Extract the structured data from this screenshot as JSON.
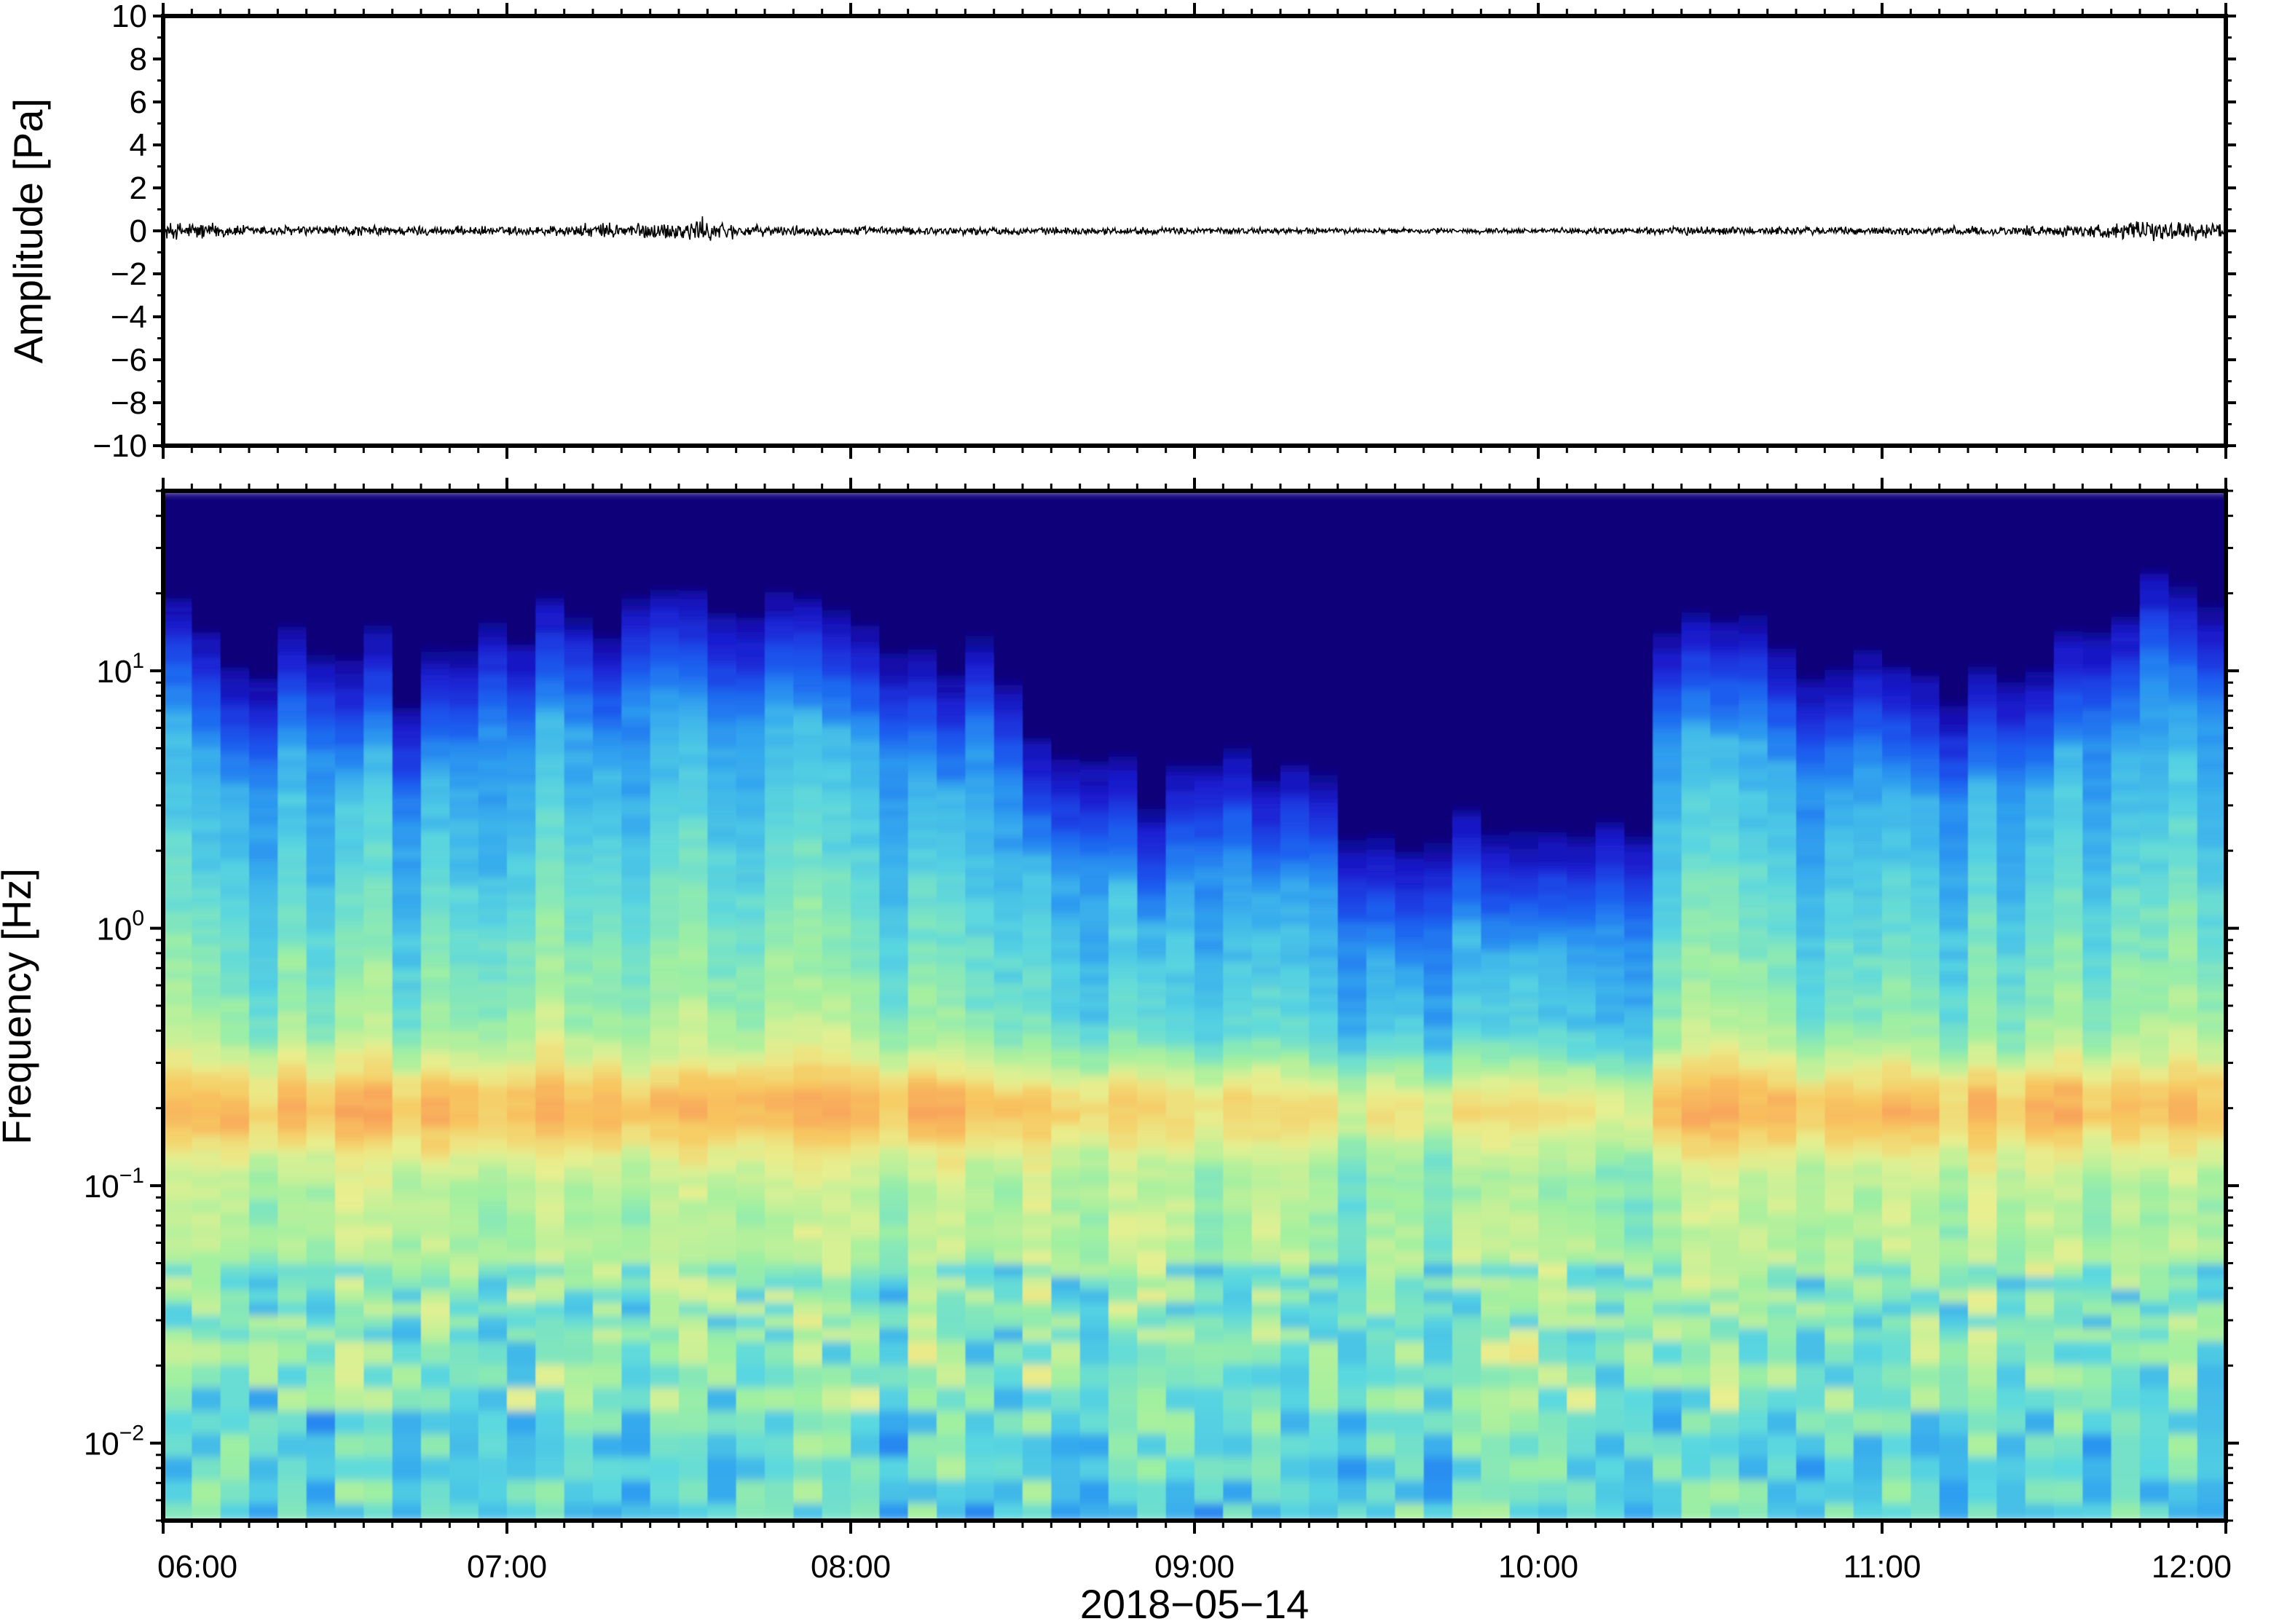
{
  "chart_data": [
    {
      "type": "line",
      "ylabel": "Amplitude [Pa]",
      "ylim": [
        -10,
        10
      ],
      "yticks": [
        10,
        8,
        6,
        4,
        2,
        0,
        -2,
        -4,
        -6,
        -8,
        -10
      ],
      "ytick_labels": [
        "10",
        "8",
        "6",
        "4",
        "2",
        "0",
        "−2",
        "−4",
        "−6",
        "−8",
        "−10"
      ],
      "xlim_hours": [
        6,
        12
      ],
      "envelope": {
        "x_hours": [
          6.0,
          6.1,
          6.2,
          6.3,
          6.5,
          6.7,
          6.9,
          7.0,
          7.2,
          7.3,
          7.5,
          7.55,
          7.7,
          8.0,
          8.5,
          9.0,
          9.5,
          10.0,
          10.5,
          11.0,
          11.3,
          11.6,
          11.8,
          12.0
        ],
        "peak_pa": [
          0.45,
          0.55,
          0.35,
          0.3,
          0.3,
          0.28,
          0.25,
          0.25,
          0.35,
          0.45,
          0.5,
          0.75,
          0.3,
          0.25,
          0.2,
          0.2,
          0.15,
          0.15,
          0.25,
          0.22,
          0.25,
          0.35,
          0.55,
          0.45
        ]
      }
    },
    {
      "type": "heatmap",
      "xlabel": "2018−05−14",
      "ylabel": "Frequency [Hz]",
      "yscale": "log",
      "ylim_hz": [
        0.005,
        50
      ],
      "yticks": [
        0.01,
        0.1,
        1,
        10
      ],
      "ytick_labels": [
        {
          "base": "10",
          "exp": "−2"
        },
        {
          "base": "10",
          "exp": "−1"
        },
        {
          "base": "10",
          "exp": "0"
        },
        {
          "base": "10",
          "exp": "1"
        }
      ],
      "xlim_hours": [
        6,
        12
      ],
      "xticks": [
        "06:00",
        "07:00",
        "08:00",
        "09:00",
        "10:00",
        "11:00",
        "12:00"
      ],
      "colormap": [
        "#0a0078",
        "#1a1ad0",
        "#1a5af0",
        "#2ea0f0",
        "#5ad8e0",
        "#a0f0a0",
        "#e8f090",
        "#f8c860",
        "#f89858"
      ],
      "upper_boundary_hz": {
        "x_hours": [
          6.0,
          6.1,
          6.2,
          6.25,
          6.3,
          6.4,
          6.5,
          6.6,
          6.7,
          6.75,
          6.8,
          7.0,
          7.2,
          7.5,
          7.8,
          8.0,
          8.2,
          8.5,
          8.55,
          8.7,
          9.0,
          9.2,
          9.5,
          9.65,
          9.8,
          10.0,
          10.2,
          10.3,
          10.4,
          10.55,
          10.7,
          11.0,
          11.2,
          11.5,
          11.6,
          11.8,
          12.0
        ],
        "hz": [
          6,
          5,
          4,
          2,
          4,
          5,
          3,
          5,
          2.5,
          1.5,
          4,
          5,
          6,
          7,
          6,
          5,
          4,
          4,
          1.5,
          1.5,
          1.2,
          1.5,
          0.9,
          0.6,
          0.9,
          0.8,
          1.2,
          0.8,
          5,
          6,
          4,
          4,
          3,
          3.5,
          5,
          7,
          6
        ]
      }
    }
  ]
}
